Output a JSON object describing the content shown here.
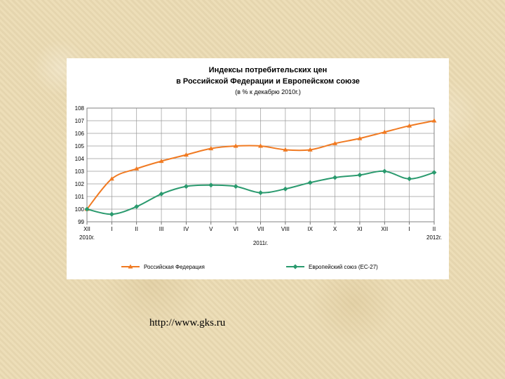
{
  "source_url": "http://www.gks.ru",
  "chart_data": {
    "type": "line",
    "title_lines": [
      "Индексы потребительских цен",
      "в Российской Федерации и Европейском союзе"
    ],
    "subtitle": "(в % к декабрю 2010г.)",
    "categories": [
      "XII",
      "I",
      "II",
      "III",
      "IV",
      "V",
      "VI",
      "VII",
      "VIII",
      "IX",
      "X",
      "XI",
      "XII",
      "I",
      "II"
    ],
    "year_labels": [
      {
        "text": "2010г.",
        "category_index": 0
      },
      {
        "text": "2011г.",
        "category_index": 7
      },
      {
        "text": "2012г.",
        "category_index": 14
      }
    ],
    "y_ticks": [
      "99",
      "100",
      "101",
      "102",
      "103",
      "104",
      "105",
      "106",
      "107",
      "108"
    ],
    "ylim": [
      99,
      108
    ],
    "grid": true,
    "legend_position": "bottom",
    "series": [
      {
        "name": "Российская Федерация",
        "color": "#f07a22",
        "marker": "triangle",
        "values": [
          100.0,
          102.4,
          103.2,
          103.8,
          104.3,
          104.8,
          105.0,
          105.0,
          104.7,
          104.7,
          105.2,
          105.6,
          106.1,
          106.6,
          107.0
        ]
      },
      {
        "name": "Европейский союз (ЕС-27)",
        "color": "#2a9a6e",
        "marker": "diamond",
        "values": [
          100.0,
          99.6,
          100.2,
          101.2,
          101.8,
          101.9,
          101.8,
          101.3,
          101.6,
          102.1,
          102.5,
          102.7,
          103.0,
          102.4,
          102.9
        ]
      }
    ]
  }
}
